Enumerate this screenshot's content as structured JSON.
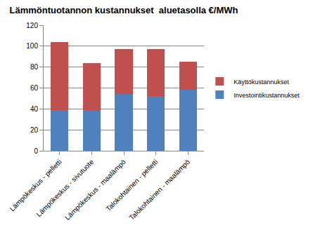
{
  "chart_data": {
    "type": "bar",
    "stacked": true,
    "title": "Lämmöntuotannon kustannukset  aluetasolla €/MWh",
    "categories": [
      "Lämpökeskus - pelletti",
      "Lämpökeskus - sivutuote",
      "Lämpökeskus - maalämpö",
      "Talokohtainen - pelletti",
      "Talokohtainen - maalämpö"
    ],
    "series": [
      {
        "name": "Investointikustannukset",
        "color": "#4F81BD",
        "values": [
          39,
          39,
          54,
          52,
          58
        ]
      },
      {
        "name": "Käyttökustannukset",
        "color": "#C0504D",
        "values": [
          65,
          45,
          43,
          45,
          27
        ]
      }
    ],
    "ylim": [
      0,
      120
    ],
    "yticks": [
      0,
      20,
      40,
      60,
      80,
      100,
      120
    ],
    "grid": true,
    "legend": "right"
  }
}
